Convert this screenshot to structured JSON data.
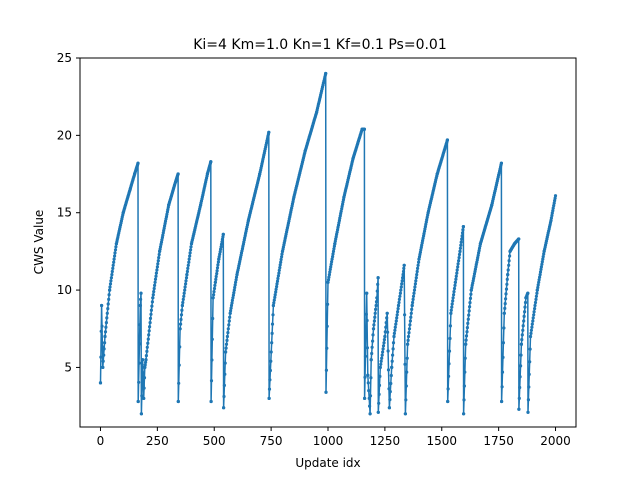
{
  "chart_data": {
    "type": "line",
    "title": "Ki=4 Km=1.0 Kn=1 Kf=0.1 Ps=0.01",
    "xlabel": "Update idx",
    "ylabel": "CWS Value",
    "xlim": [
      -90,
      2090
    ],
    "ylim": [
      1.15,
      25.0
    ],
    "xticks": [
      0,
      250,
      500,
      750,
      1000,
      1250,
      1500,
      1750,
      2000
    ],
    "xtick_labels": [
      "0",
      "250",
      "500",
      "750",
      "1000",
      "1250",
      "1500",
      "1750",
      "2000"
    ],
    "yticks": [
      5,
      10,
      15,
      20,
      25
    ],
    "ytick_labels": [
      "5",
      "10",
      "15",
      "20",
      "25"
    ],
    "grid": false,
    "legend": "none",
    "series": [
      {
        "color": "#1f77b4",
        "marker": "dot",
        "x": [
          0,
          5,
          10,
          20,
          40,
          70,
          100,
          130,
          150,
          165,
          166,
          175,
          178,
          180,
          185,
          190,
          195,
          200,
          230,
          260,
          300,
          330,
          341,
          342,
          350,
          360,
          380,
          400,
          440,
          470,
          485,
          486,
          495,
          505,
          520,
          540,
          541,
          550,
          570,
          600,
          650,
          700,
          740,
          741,
          760,
          800,
          850,
          900,
          950,
          990,
          991,
          1000,
          1030,
          1070,
          1110,
          1150,
          1160,
          1161,
          1170,
          1175,
          1185,
          1190,
          1200,
          1215,
          1220,
          1221,
          1230,
          1250,
          1260,
          1270,
          1280,
          1290,
          1310,
          1330,
          1335,
          1340,
          1350,
          1370,
          1400,
          1440,
          1480,
          1525,
          1526,
          1540,
          1560,
          1580,
          1595,
          1596,
          1605,
          1630,
          1670,
          1720,
          1762,
          1763,
          1775,
          1790,
          1800,
          1820,
          1838,
          1839,
          1850,
          1870,
          1878,
          1879,
          1890,
          1920,
          1950,
          1980,
          2000
        ],
        "y": [
          4.0,
          9.0,
          5.0,
          7.0,
          10.0,
          13.0,
          15.0,
          16.5,
          17.5,
          18.2,
          2.8,
          9.0,
          9.8,
          2.0,
          5.5,
          3.0,
          5.0,
          5.5,
          9.5,
          12.5,
          15.5,
          17.0,
          17.5,
          2.8,
          7.5,
          9.0,
          11.0,
          13.0,
          15.5,
          17.5,
          18.3,
          2.8,
          9.5,
          10.5,
          12.0,
          13.6,
          2.4,
          6.0,
          8.5,
          11.0,
          14.5,
          17.5,
          20.2,
          3.0,
          9.0,
          12.5,
          16.0,
          19.0,
          21.5,
          24.0,
          3.4,
          10.5,
          13.0,
          16.0,
          18.5,
          20.4,
          20.4,
          3.0,
          9.8,
          4.5,
          2.0,
          5.5,
          7.5,
          9.5,
          10.8,
          2.1,
          5.0,
          7.0,
          8.5,
          2.4,
          5.0,
          7.0,
          9.0,
          11.0,
          11.6,
          2.0,
          6.5,
          9.0,
          12.0,
          15.0,
          17.5,
          19.7,
          2.8,
          8.5,
          10.5,
          12.5,
          14.1,
          2.0,
          6.5,
          10.0,
          13.0,
          15.5,
          18.2,
          2.8,
          8.5,
          11.0,
          12.5,
          13.0,
          13.3,
          2.3,
          6.5,
          9.5,
          9.8,
          2.1,
          7.0,
          10.0,
          12.5,
          14.5,
          16.1
        ]
      }
    ]
  }
}
